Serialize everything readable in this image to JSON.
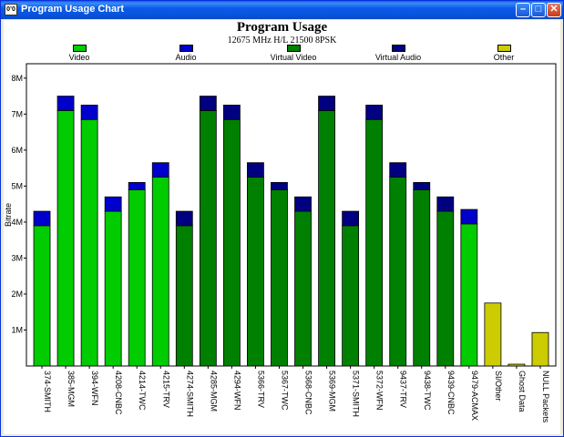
{
  "window": {
    "title": "Program Usage Chart",
    "icon_name": "app-icon",
    "icon_text": "0’0"
  },
  "chart_data": {
    "type": "bar",
    "stacked": true,
    "title": "Program Usage",
    "subtitle": "12675 MHz H/L 21500 8PSK",
    "xlabel": "",
    "ylabel": "Bitrate",
    "ylim": [
      0,
      8.4
    ],
    "yticks": [
      {
        "value": 1,
        "label": "1M"
      },
      {
        "value": 2,
        "label": "2M"
      },
      {
        "value": 3,
        "label": "3M"
      },
      {
        "value": 4,
        "label": "4M"
      },
      {
        "value": 5,
        "label": "5M"
      },
      {
        "value": 6,
        "label": "6M"
      },
      {
        "value": 7,
        "label": "7M"
      },
      {
        "value": 8,
        "label": "8M"
      }
    ],
    "grid": false,
    "legend_position": "top",
    "legend": [
      {
        "name": "Video",
        "color": "#00cc00"
      },
      {
        "name": "Audio",
        "color": "#0000cc"
      },
      {
        "name": "Virtual Video",
        "color": "#008000"
      },
      {
        "name": "Virtual Audio",
        "color": "#000080"
      },
      {
        "name": "Other",
        "color": "#cccc00"
      }
    ],
    "categories": [
      "374-SMITH",
      "385-MGM",
      "394-WFN",
      "4208-CNBC",
      "4214-TWC",
      "4215-TRV",
      "4274-SMITH",
      "4285-MGM",
      "4294-WFN",
      "5366-TRV",
      "5367-TWC",
      "5368-CNBC",
      "5369-MGM",
      "5371-SMITH",
      "5372-WFN",
      "9437-TRV",
      "9438-TWC",
      "9439-CNBC",
      "9479-ACMAX",
      "SI/Other",
      "Ghost Data",
      "NULL Packets"
    ],
    "series": [
      {
        "name": "Video",
        "values": [
          3.9,
          7.1,
          6.85,
          4.3,
          4.9,
          5.25,
          0,
          0,
          0,
          0,
          0,
          0,
          0,
          0,
          0,
          0,
          0,
          0,
          3.95,
          0,
          0,
          0
        ]
      },
      {
        "name": "Audio",
        "values": [
          0.4,
          0.4,
          0.4,
          0.4,
          0.2,
          0.4,
          0,
          0,
          0,
          0,
          0,
          0,
          0,
          0,
          0,
          0,
          0,
          0,
          0.4,
          0,
          0,
          0
        ]
      },
      {
        "name": "Virtual Video",
        "values": [
          0,
          0,
          0,
          0,
          0,
          0,
          3.9,
          7.1,
          6.85,
          5.25,
          4.9,
          4.3,
          7.1,
          3.9,
          6.85,
          5.25,
          4.9,
          4.3,
          0,
          0,
          0,
          0
        ]
      },
      {
        "name": "Virtual Audio",
        "values": [
          0,
          0,
          0,
          0,
          0,
          0,
          0.4,
          0.4,
          0.4,
          0.4,
          0.2,
          0.4,
          0.4,
          0.4,
          0.4,
          0.4,
          0.2,
          0.4,
          0,
          0,
          0,
          0
        ]
      },
      {
        "name": "Other",
        "values": [
          0,
          0,
          0,
          0,
          0,
          0,
          0,
          0,
          0,
          0,
          0,
          0,
          0,
          0,
          0,
          0,
          0,
          0,
          0,
          1.75,
          0.05,
          0.93
        ]
      }
    ]
  }
}
